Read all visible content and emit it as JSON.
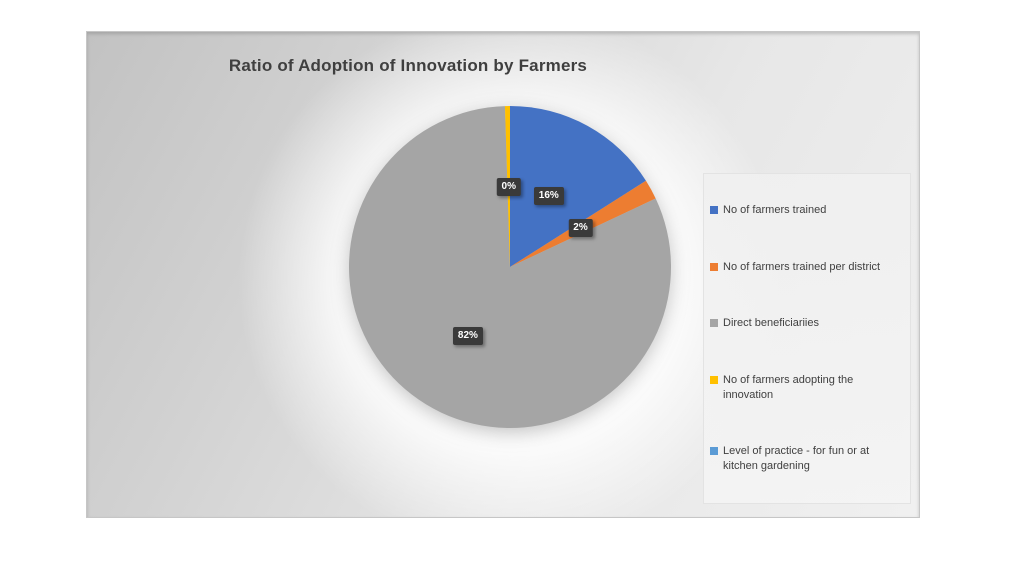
{
  "chart_data": {
    "type": "pie",
    "title": "Ratio of Adoption of Innovation by Farmers",
    "legend_position": "right",
    "label_style": {
      "bg": "#3A3A3A",
      "text": "#FFFFFF"
    },
    "slices": [
      {
        "name": "No of farmers trained",
        "pct": 16,
        "pct_label": "16%",
        "render_pct": 16,
        "color": "#4472C4"
      },
      {
        "name": "No of farmers trained per district",
        "pct": 2,
        "pct_label": "2%",
        "render_pct": 2,
        "color": "#ED7D31"
      },
      {
        "name": "Direct beneficiariies",
        "pct": 82,
        "pct_label": "82%",
        "render_pct": 81.5,
        "color": "#A5A5A5"
      },
      {
        "name": "No of farmers adopting the innovation",
        "pct": 0,
        "pct_label": "0%",
        "render_pct": 0.5,
        "color": "#FFC000"
      },
      {
        "name": "Level of practice - for fun or at kitchen gardening",
        "pct": 0,
        "pct_label": null,
        "render_pct": 0,
        "color": "#5B9BD5"
      }
    ]
  }
}
